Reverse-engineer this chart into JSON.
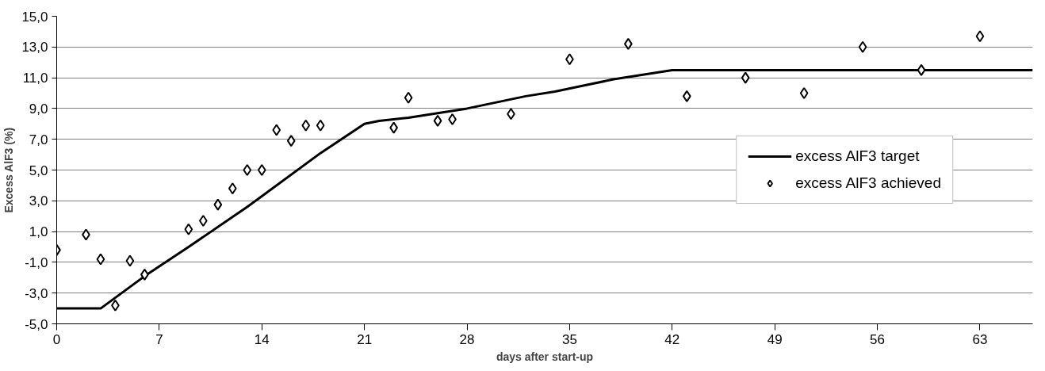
{
  "chart_data": {
    "type": "scatter",
    "xlabel": "days after start-up",
    "ylabel": "Excess AlF3 (%)",
    "xlim": [
      0,
      66.6
    ],
    "xticks": [
      0,
      7,
      14,
      21,
      28,
      35,
      42,
      49,
      56,
      63
    ],
    "ylim": [
      -5,
      15
    ],
    "yticks": [
      {
        "value": -5,
        "label": "-5,0"
      },
      {
        "value": -3,
        "label": "-3,0"
      },
      {
        "value": -1,
        "label": "-1,0"
      },
      {
        "value": 1,
        "label": "1,0"
      },
      {
        "value": 3,
        "label": "3,0"
      },
      {
        "value": 5,
        "label": "5,0"
      },
      {
        "value": 7,
        "label": "7,0"
      },
      {
        "value": 9,
        "label": "9,0"
      },
      {
        "value": 11,
        "label": "11,0"
      },
      {
        "value": 13,
        "label": "13,0"
      },
      {
        "value": 15,
        "label": "15,0"
      }
    ],
    "grid": "y",
    "legend": "right",
    "series": [
      {
        "name": "excess AlF3 target",
        "type": "line",
        "color": "#000000",
        "line_style": "solid",
        "marker": "none",
        "x": [
          0,
          3,
          6,
          9,
          13,
          14,
          18,
          21,
          22,
          24,
          26,
          28,
          30,
          32,
          34,
          36,
          38,
          40,
          42,
          66.6
        ],
        "values": [
          -4,
          -4,
          -1.9,
          0,
          2.6,
          3.3,
          6.1,
          8.0,
          8.2,
          8.4,
          8.7,
          9.0,
          9.4,
          9.8,
          10.1,
          10.5,
          10.9,
          11.2,
          11.5,
          11.5
        ]
      },
      {
        "name": "excess AlF3 achieved",
        "color": "#000000",
        "marker": "diamond",
        "x": [
          0,
          2,
          3,
          4,
          5,
          6,
          9,
          10,
          11,
          12,
          13,
          14,
          15,
          16,
          17,
          18,
          23,
          24,
          26,
          27,
          31,
          35,
          39,
          43,
          47,
          51,
          55,
          59,
          63
        ],
        "values": [
          -0.2,
          0.8,
          -0.8,
          -3.8,
          -0.9,
          -1.8,
          1.15,
          1.7,
          2.75,
          3.8,
          5.0,
          5.0,
          7.6,
          6.9,
          7.9,
          7.9,
          7.75,
          9.7,
          8.2,
          8.3,
          8.65,
          12.2,
          13.2,
          9.8,
          11.0,
          10.0,
          13.0,
          11.5,
          13.7
        ]
      }
    ]
  }
}
